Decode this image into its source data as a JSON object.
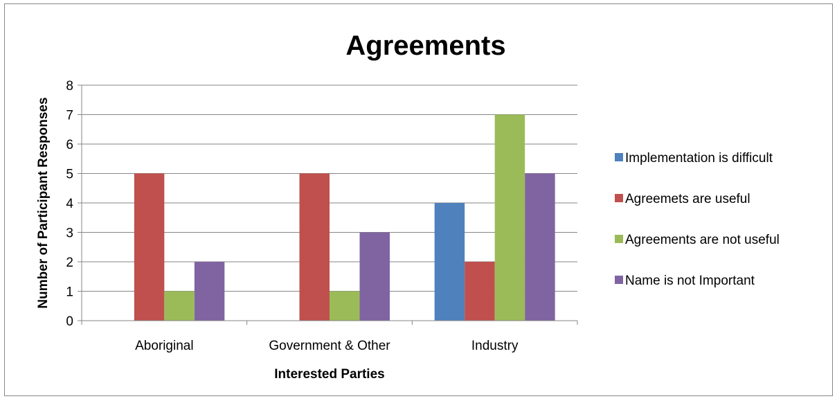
{
  "chart_data": {
    "type": "bar",
    "title": "Agreements",
    "xlabel": "Interested Parties",
    "ylabel": "Number of Participant Responses",
    "categories": [
      "Aboriginal",
      "Government & Other",
      "Industry"
    ],
    "series": [
      {
        "name": "Implementation is difficult",
        "values": [
          0,
          0,
          4
        ],
        "color": "#4F81BD"
      },
      {
        "name": "Agreemets are useful",
        "values": [
          5,
          5,
          2
        ],
        "color": "#C0504D"
      },
      {
        "name": "Agreements are not useful",
        "values": [
          1,
          1,
          7
        ],
        "color": "#9BBB59"
      },
      {
        "name": "Name is not Important",
        "values": [
          2,
          3,
          5
        ],
        "color": "#8064A2"
      }
    ],
    "ylim": [
      0,
      8
    ],
    "yticks": [
      0,
      1,
      2,
      3,
      4,
      5,
      6,
      7,
      8
    ],
    "grid": true,
    "legend_position": "right"
  }
}
